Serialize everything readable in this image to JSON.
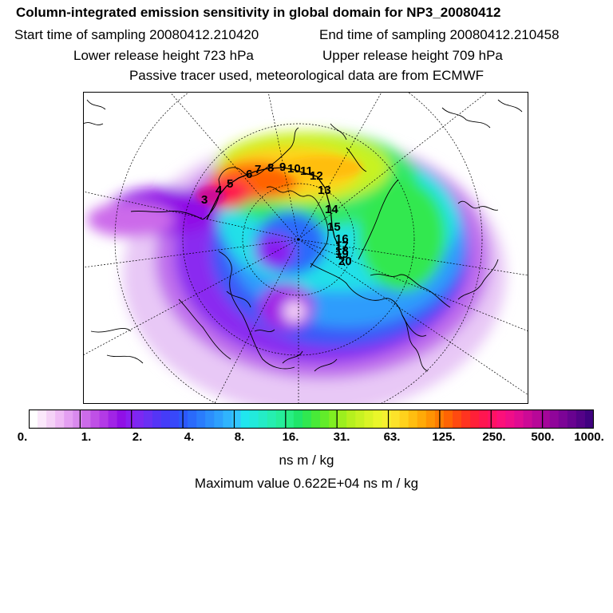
{
  "header": {
    "title": "Column-integrated emission sensitivity in global domain for NP3_20080412",
    "start_time": "Start time of sampling 20080412.210420",
    "end_time": "End time of sampling 20080412.210458",
    "lower_release": "Lower release height  723 hPa",
    "upper_release": "Upper release height  709 hPa",
    "tracer_info": "Passive tracer used, meteorological data are from ECMWF"
  },
  "map": {
    "track_labels": [
      "3",
      "4",
      "5",
      "6",
      "7",
      "8",
      "9",
      "10",
      "11",
      "12",
      "13",
      "14",
      "15",
      "16",
      "17",
      "18",
      "19",
      "20"
    ]
  },
  "colorbar": {
    "ticks": [
      "0.",
      "1.",
      "2.",
      "4.",
      "8.",
      "16.",
      "31.",
      "63.",
      "125.",
      "250.",
      "500.",
      "1000."
    ],
    "colors": [
      "#ffffff",
      "#fbe8fb",
      "#f5d2f7",
      "#efbaf5",
      "#e49ff2",
      "#d98aee",
      "#cc6bea",
      "#bf50e6",
      "#b33ae6",
      "#a124e6",
      "#9010e6",
      "#8a1ff0",
      "#7c28f2",
      "#6a30f4",
      "#5535f6",
      "#453cf8",
      "#3848fa",
      "#2c58fb",
      "#2a6afb",
      "#2a7cfc",
      "#2c8efc",
      "#2ea0fd",
      "#30b4fd",
      "#32c6fe",
      "#20e6ee",
      "#22eadb",
      "#24ecc6",
      "#26eeb0",
      "#26ee9a",
      "#28ee84",
      "#20e66a",
      "#30e850",
      "#48ea38",
      "#62ec2a",
      "#80ee22",
      "#9cef1e",
      "#b6f01e",
      "#c8f222",
      "#daf426",
      "#eaf62a",
      "#f6f030",
      "#fce22a",
      "#ffd21c",
      "#ffbe10",
      "#ffaa08",
      "#ff9404",
      "#ff7c02",
      "#ff6404",
      "#ff4a10",
      "#ff3420",
      "#ff2038",
      "#ff1650",
      "#ff1264",
      "#fc107a",
      "#f00e88",
      "#e00c92",
      "#cc0a96",
      "#b80898",
      "#a4069a",
      "#90059a",
      "#7c0496",
      "#680390",
      "#540288",
      "#400180"
    ],
    "unit": "ns m / kg"
  },
  "footer": {
    "max_value": "Maximum value  0.622E+04 ns m / kg"
  }
}
